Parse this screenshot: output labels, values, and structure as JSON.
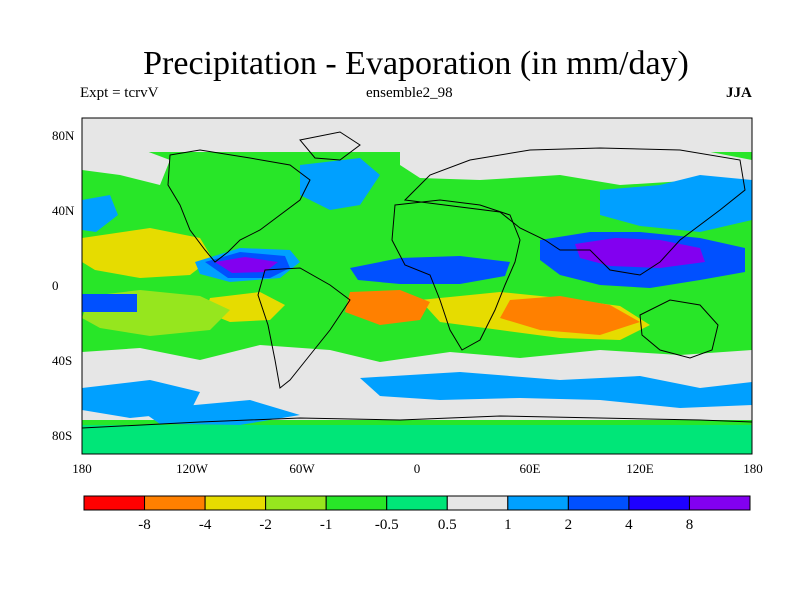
{
  "header": {
    "title": "Precipitation - Evaporation (in mm/day)",
    "experiment": "Expt = tcrvV",
    "ensemble": "ensemble2_98",
    "season": "JJA"
  },
  "axes": {
    "lat_labels": [
      "80N",
      "40N",
      "0",
      "40S",
      "80S"
    ],
    "lon_labels": [
      "180",
      "120W",
      "60W",
      "0",
      "60E",
      "120E",
      "180"
    ]
  },
  "colorbar": {
    "bins": [
      {
        "color": "#ff0000"
      },
      {
        "color": "#ff8000"
      },
      {
        "color": "#e6dc00"
      },
      {
        "color": "#96e61e"
      },
      {
        "color": "#28e628"
      },
      {
        "color": "#00e678"
      },
      {
        "color": "#e6e6e6"
      },
      {
        "color": "#00a0ff"
      },
      {
        "color": "#0050ff"
      },
      {
        "color": "#1e00ff"
      },
      {
        "color": "#8200f0"
      }
    ],
    "labels": [
      "-8",
      "-4",
      "-2",
      "-1",
      "-0.5",
      "0.5",
      "1",
      "2",
      "4",
      "8"
    ]
  }
}
